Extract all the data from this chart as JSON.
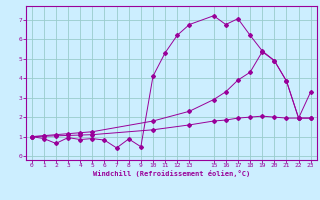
{
  "xlabel": "Windchill (Refroidissement éolien,°C)",
  "bg_color": "#cceeff",
  "grid_color": "#99cccc",
  "line_color": "#990099",
  "xlim": [
    -0.5,
    23.5
  ],
  "ylim": [
    -0.2,
    7.7
  ],
  "xticks": [
    0,
    1,
    2,
    3,
    4,
    5,
    6,
    7,
    8,
    9,
    10,
    11,
    12,
    13,
    15,
    16,
    17,
    18,
    19,
    20,
    21,
    22,
    23
  ],
  "yticks": [
    0,
    1,
    2,
    3,
    4,
    5,
    6,
    7
  ],
  "series1_x": [
    0,
    1,
    2,
    3,
    4,
    5,
    6,
    7,
    8,
    9,
    10,
    11,
    12,
    13,
    15,
    16,
    17,
    18,
    19,
    20,
    21,
    22,
    23
  ],
  "series1_y": [
    1.0,
    0.9,
    0.65,
    0.95,
    0.85,
    0.9,
    0.82,
    0.42,
    0.88,
    0.48,
    4.1,
    5.3,
    6.2,
    6.75,
    7.2,
    6.75,
    7.05,
    6.2,
    5.4,
    4.9,
    3.85,
    1.95,
    3.3
  ],
  "series2_x": [
    0,
    1,
    2,
    3,
    4,
    5,
    10,
    13,
    15,
    16,
    17,
    18,
    19,
    20,
    21,
    22,
    23
  ],
  "series2_y": [
    1.0,
    1.05,
    1.1,
    1.15,
    1.2,
    1.25,
    1.8,
    2.3,
    2.9,
    3.3,
    3.9,
    4.3,
    5.35,
    4.9,
    3.85,
    1.95,
    1.95
  ],
  "series3_x": [
    0,
    1,
    2,
    3,
    4,
    5,
    10,
    13,
    15,
    16,
    17,
    18,
    19,
    20,
    21,
    22,
    23
  ],
  "series3_y": [
    1.0,
    1.02,
    1.04,
    1.06,
    1.08,
    1.1,
    1.35,
    1.6,
    1.8,
    1.85,
    1.95,
    2.0,
    2.05,
    2.0,
    1.95,
    1.95,
    1.95
  ]
}
